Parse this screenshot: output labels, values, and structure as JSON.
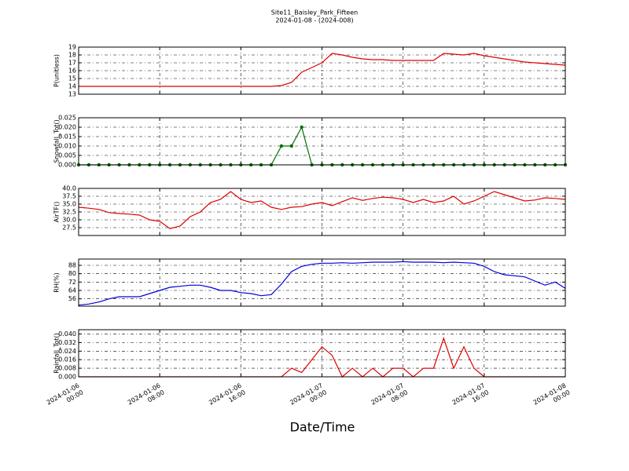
{
  "chart_data": {
    "type": "line",
    "title": "Site11_Baisley_Park_Fifteen",
    "subtitle": "2024-01-08 - (2024-008)",
    "xlabel": "Date/Time",
    "xlim": [
      "2024-01-06 00:00",
      "2024-01-08 00:00"
    ],
    "xticks": [
      "2024-01-06 00:00",
      "2024-01-06 08:00",
      "2024-01-06 16:00",
      "2024-01-07 00:00",
      "2024-01-07 08:00",
      "2024-01-07 16:00",
      "2024-01-08 00:00"
    ],
    "grid": true,
    "x": [
      "2024-01-06 00:00",
      "2024-01-06 01:00",
      "2024-01-06 02:00",
      "2024-01-06 03:00",
      "2024-01-06 04:00",
      "2024-01-06 05:00",
      "2024-01-06 06:00",
      "2024-01-06 07:00",
      "2024-01-06 08:00",
      "2024-01-06 09:00",
      "2024-01-06 10:00",
      "2024-01-06 11:00",
      "2024-01-06 12:00",
      "2024-01-06 13:00",
      "2024-01-06 14:00",
      "2024-01-06 15:00",
      "2024-01-06 16:00",
      "2024-01-06 17:00",
      "2024-01-06 18:00",
      "2024-01-06 19:00",
      "2024-01-06 20:00",
      "2024-01-06 21:00",
      "2024-01-06 22:00",
      "2024-01-06 23:00",
      "2024-01-07 00:00",
      "2024-01-07 01:00",
      "2024-01-07 02:00",
      "2024-01-07 03:00",
      "2024-01-07 04:00",
      "2024-01-07 05:00",
      "2024-01-07 06:00",
      "2024-01-07 07:00",
      "2024-01-07 08:00",
      "2024-01-07 09:00",
      "2024-01-07 10:00",
      "2024-01-07 11:00",
      "2024-01-07 12:00",
      "2024-01-07 13:00",
      "2024-01-07 14:00",
      "2024-01-07 15:00",
      "2024-01-07 16:00",
      "2024-01-07 17:00",
      "2024-01-07 18:00",
      "2024-01-07 19:00",
      "2024-01-07 20:00",
      "2024-01-07 21:00",
      "2024-01-07 22:00",
      "2024-01-07 23:00",
      "2024-01-08 00:00"
    ],
    "panels": [
      {
        "ylabel": "P(unitless)",
        "ylim": [
          13,
          19
        ],
        "yticks": [
          13,
          14,
          15,
          16,
          17,
          18,
          19
        ],
        "series": [
          {
            "color": "#e00000",
            "values": [
              14,
              14,
              14,
              14,
              14,
              14,
              14,
              14,
              14,
              14,
              14,
              14,
              14,
              14,
              14,
              14,
              14,
              14,
              14,
              14,
              14.1,
              14.5,
              15.8,
              16.4,
              17.0,
              18.2,
              18.0,
              17.7,
              17.5,
              17.4,
              17.4,
              17.3,
              17.3,
              17.3,
              17.3,
              17.3,
              18.2,
              18.1,
              18.0,
              18.2,
              17.9,
              17.7,
              17.5,
              17.3,
              17.1,
              17.0,
              16.9,
              16.8,
              16.7
            ]
          }
        ]
      },
      {
        "ylabel": "Snowfall_Tot()",
        "ylim": [
          0,
          0.025
        ],
        "markers": true,
        "yticks": [
          {
            "value": 0,
            "label": "0.000"
          },
          {
            "value": 0.005,
            "label": "0.005"
          },
          {
            "value": 0.01,
            "label": "0.010"
          },
          {
            "value": 0.015,
            "label": "0.015"
          },
          {
            "value": 0.02,
            "label": "0.020"
          },
          {
            "value": 0.025,
            "label": "0.025"
          }
        ],
        "series": [
          {
            "color": "#007000",
            "values": [
              0,
              0,
              0,
              0,
              0,
              0,
              0,
              0,
              0,
              0,
              0,
              0,
              0,
              0,
              0,
              0,
              0,
              0,
              0,
              0,
              0.01,
              0.01,
              0.02,
              0,
              0,
              0,
              0,
              0,
              0,
              0,
              0,
              0,
              0,
              0,
              0,
              0,
              0,
              0,
              0,
              0,
              0,
              0,
              0,
              0,
              0,
              0,
              0,
              0,
              0
            ]
          }
        ]
      },
      {
        "ylabel": "AirTF()",
        "ylim": [
          25,
          40
        ],
        "yticks": [
          {
            "value": 27.5,
            "label": "27.5"
          },
          {
            "value": 30,
            "label": "30.0"
          },
          {
            "value": 32.5,
            "label": "32.5"
          },
          {
            "value": 35,
            "label": "35.0"
          },
          {
            "value": 37.5,
            "label": "37.5"
          },
          {
            "value": 40,
            "label": "40.0"
          }
        ],
        "series": [
          {
            "color": "#e00000",
            "values": [
              34,
              33.7,
              33.3,
              32.3,
              32,
              31.8,
              31.5,
              30,
              29.5,
              27.2,
              28,
              31,
              32.5,
              35.5,
              36.5,
              39,
              36.5,
              35.5,
              36,
              34,
              33.3,
              34,
              34.2,
              35,
              35.5,
              34.5,
              35.8,
              37,
              36.2,
              36.8,
              37.2,
              37,
              36.5,
              35.5,
              36.5,
              35.5,
              36,
              37.5,
              35,
              36,
              37.5,
              39,
              38,
              37,
              36,
              36.3,
              37,
              36.8,
              36.5
            ]
          }
        ]
      },
      {
        "ylabel": "RH(%)",
        "ylim": [
          49,
          94
        ],
        "yticks": [
          56,
          64,
          72,
          80,
          88
        ],
        "series": [
          {
            "color": "#0000e0",
            "values": [
              50,
              51,
              53,
              56,
              58,
              58,
              58,
              61,
              64,
              67,
              68,
              69,
              69,
              67,
              64,
              64,
              62,
              61,
              59,
              60,
              70,
              82,
              87,
              89,
              90,
              90,
              90.5,
              90,
              90.5,
              91,
              91,
              91,
              91.5,
              91,
              91,
              91,
              90.5,
              91,
              90.5,
              90,
              87,
              82,
              79,
              78,
              77,
              73,
              69,
              72,
              66
            ]
          }
        ]
      },
      {
        "ylabel": "Rainfall_Tot()",
        "ylim": [
          0,
          0.044
        ],
        "yticks": [
          {
            "value": 0,
            "label": "0.000"
          },
          {
            "value": 0.008,
            "label": "0.008"
          },
          {
            "value": 0.016,
            "label": "0.016"
          },
          {
            "value": 0.024,
            "label": "0.024"
          },
          {
            "value": 0.032,
            "label": "0.032"
          },
          {
            "value": 0.04,
            "label": "0.040"
          }
        ],
        "series": [
          {
            "color": "#e00000",
            "values": [
              0,
              0,
              0,
              0,
              0,
              0,
              0,
              0,
              0,
              0,
              0,
              0,
              0,
              0,
              0,
              0,
              0,
              0,
              0,
              0,
              0,
              0.008,
              0.004,
              0.016,
              0.028,
              0.02,
              0,
              0.008,
              0,
              0.008,
              0,
              0.008,
              0.008,
              0,
              0.008,
              0.008,
              0.036,
              0.008,
              0.028,
              0.008,
              0,
              0,
              0,
              0,
              0,
              0,
              0,
              0,
              0
            ]
          }
        ]
      }
    ]
  }
}
